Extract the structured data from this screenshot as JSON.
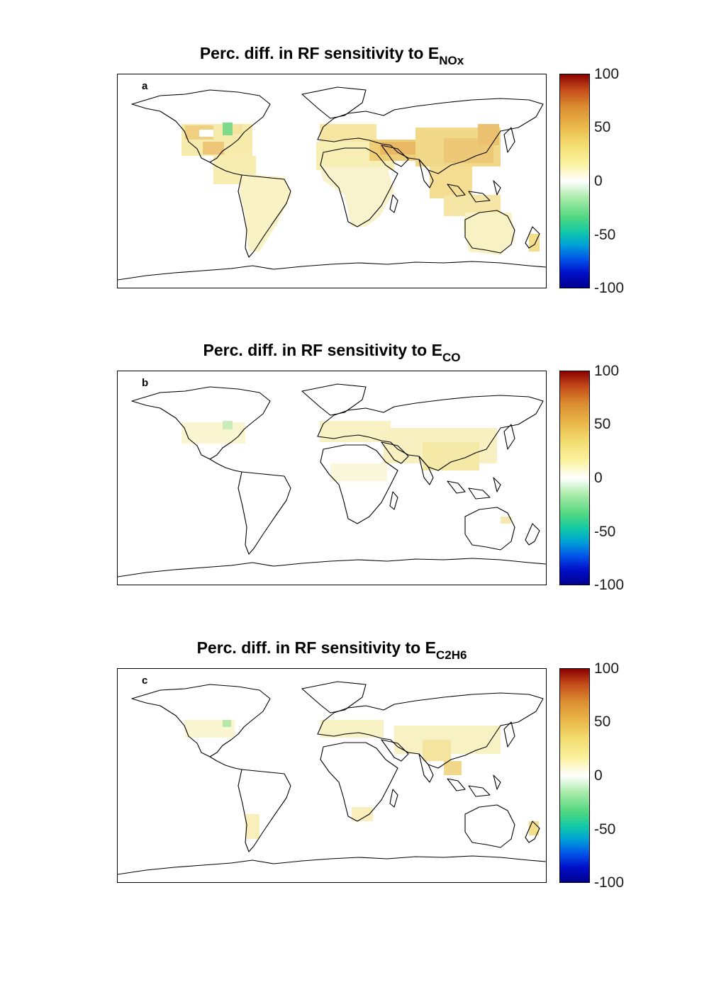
{
  "figure": {
    "panels": [
      {
        "id": "a",
        "title_main": "Perc. diff. in RF sensitivity to E",
        "title_sub": "NOx",
        "colorbar_ticks": [
          "100",
          "50",
          "0",
          "-50",
          "-100"
        ],
        "colormap_colors": [
          "#00008f",
          "#0050e8",
          "#10c8a8",
          "#ffffff",
          "#f3dd70",
          "#db8c30",
          "#8b0000"
        ]
      },
      {
        "id": "b",
        "title_main": "Perc. diff. in RF sensitivity to E",
        "title_sub": "CO",
        "colorbar_ticks": [
          "100",
          "50",
          "0",
          "-50",
          "-100"
        ],
        "colormap_colors": [
          "#00008f",
          "#0050e8",
          "#10c8a8",
          "#ffffff",
          "#f3dd70",
          "#db8c30",
          "#8b0000"
        ]
      },
      {
        "id": "c",
        "title_main": "Perc. diff. in RF sensitivity to E",
        "title_sub": "C2H6",
        "colorbar_ticks": [
          "100",
          "50",
          "0",
          "-50",
          "-100"
        ],
        "colormap_colors": [
          "#00008f",
          "#0050e8",
          "#10c8a8",
          "#ffffff",
          "#f3dd70",
          "#db8c30",
          "#8b0000"
        ]
      }
    ]
  }
}
